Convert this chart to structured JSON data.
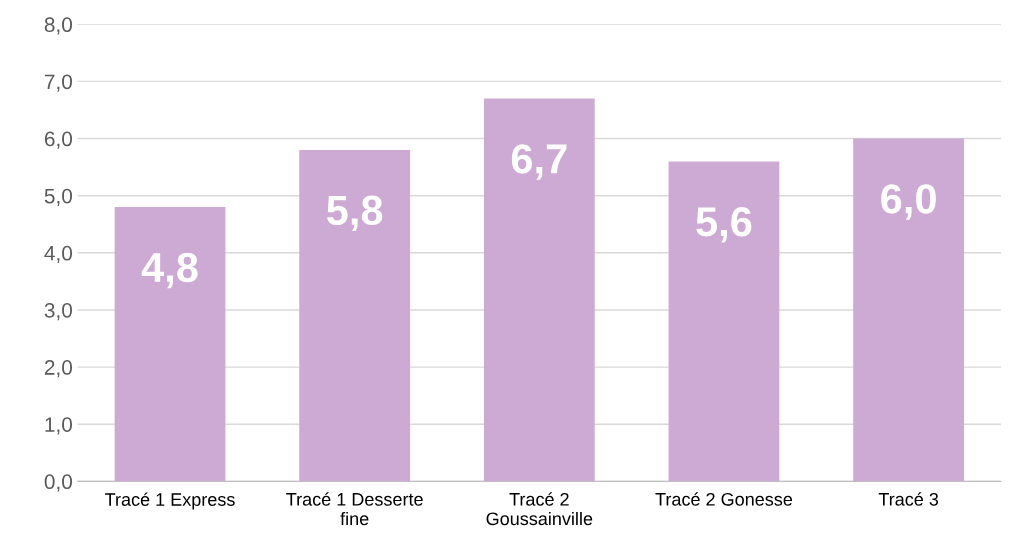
{
  "chart_data": {
    "type": "bar",
    "categories": [
      "Tracé 1 Express",
      "Tracé 1 Desserte\nfine",
      "Tracé 2\nGoussainville",
      "Tracé 2 Gonesse",
      "Tracé 3"
    ],
    "values": [
      4.8,
      5.8,
      6.7,
      5.6,
      6.0
    ],
    "value_labels": [
      "4,8",
      "5,8",
      "6,7",
      "5,6",
      "6,0"
    ],
    "color": "#cdaad3",
    "ylim": [
      0,
      8
    ],
    "yticks": [
      {
        "value": 0,
        "label": "0,0"
      },
      {
        "value": 1,
        "label": "1,0"
      },
      {
        "value": 2,
        "label": "2,0"
      },
      {
        "value": 3,
        "label": "3,0"
      },
      {
        "value": 4,
        "label": "4,0"
      },
      {
        "value": 5,
        "label": "5,0"
      },
      {
        "value": 6,
        "label": "6,0"
      },
      {
        "value": 7,
        "label": "7,0"
      },
      {
        "value": 8,
        "label": "8,0"
      }
    ],
    "grid": "y",
    "legend": false
  }
}
